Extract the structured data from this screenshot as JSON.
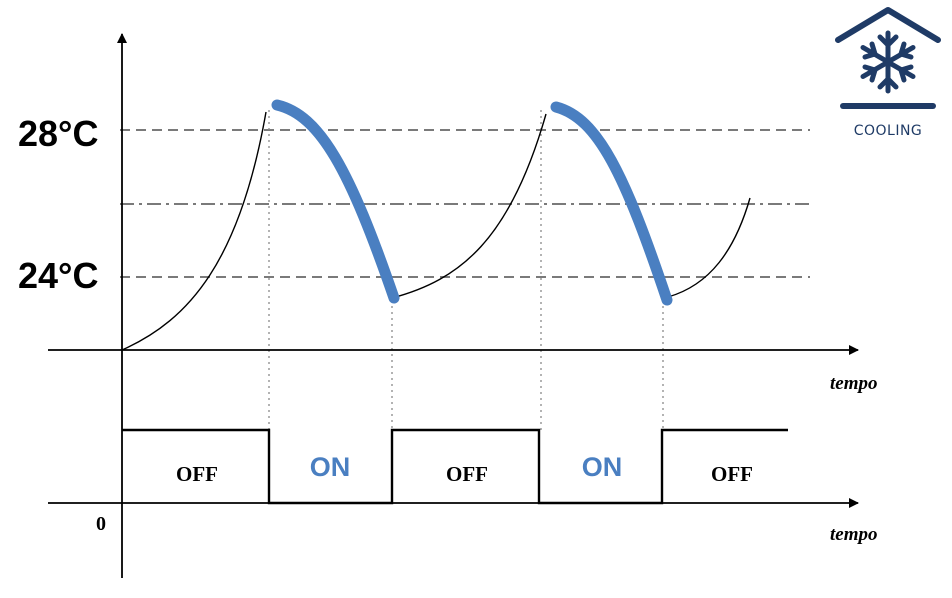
{
  "temperature_labels": {
    "high": "28°C",
    "low": "24°C"
  },
  "axes": {
    "time_label_upper": "tempo",
    "time_label_lower": "tempo",
    "origin_label": "0"
  },
  "states": [
    {
      "label": "OFF"
    },
    {
      "label": "ON"
    },
    {
      "label": "OFF"
    },
    {
      "label": "ON"
    },
    {
      "label": "OFF"
    }
  ],
  "badge": {
    "label": "COOLING",
    "icon": "snowflake-house-icon"
  },
  "colors": {
    "cooling": "#4a7fc1",
    "badge": "#1f3b66",
    "dashed": "#7a7a7a"
  }
}
